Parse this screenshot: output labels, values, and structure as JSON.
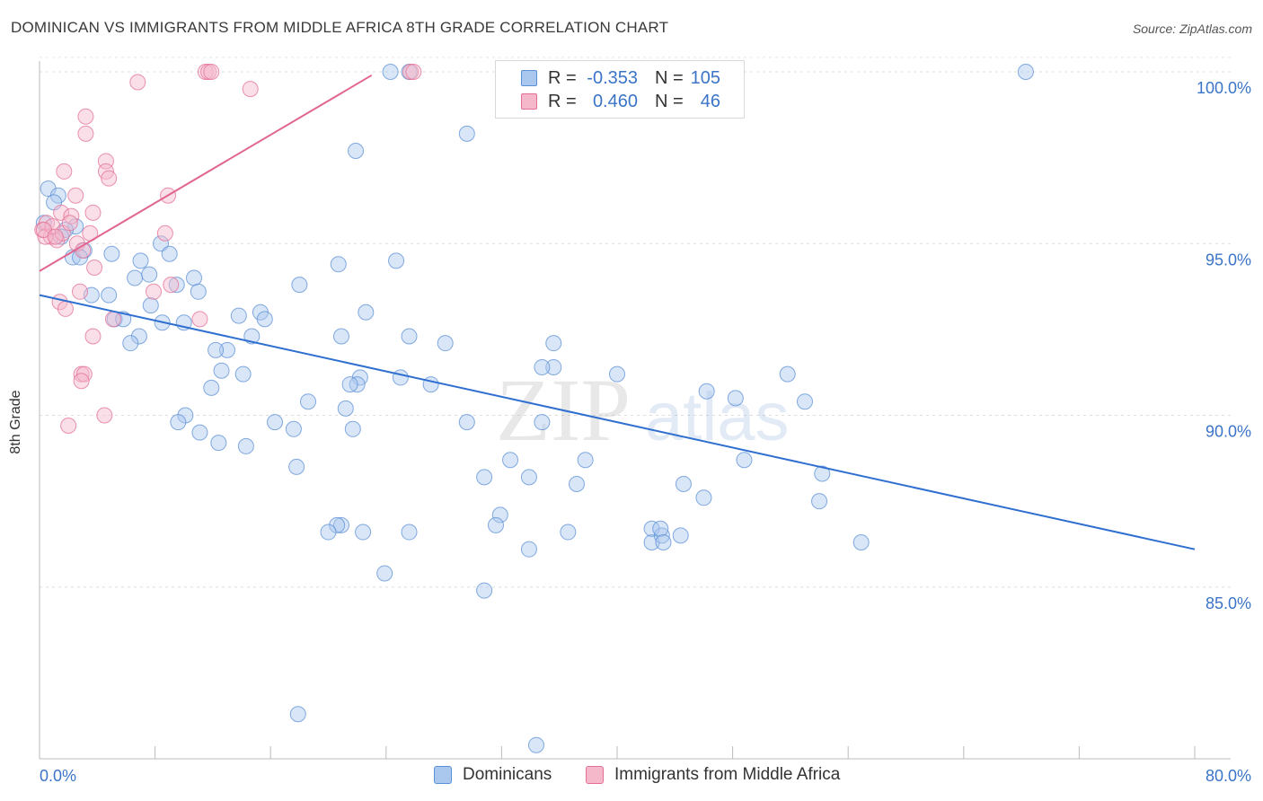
{
  "title": "DOMINICAN VS IMMIGRANTS FROM MIDDLE AFRICA 8TH GRADE CORRELATION CHART",
  "source": "Source: ZipAtlas.com",
  "watermark": {
    "zip": "ZIP",
    "atlas": "atlas"
  },
  "legend": {
    "r_label": "R =",
    "n_label": "N =",
    "series": [
      {
        "name": "Dominicans",
        "r": "-0.353",
        "n": "105",
        "color": "#5b8fd6",
        "fill": "#aac8ee"
      },
      {
        "name": "Immigrants from Middle Africa",
        "r": "0.460",
        "n": "46",
        "color": "#e36f94",
        "fill": "#f5b8cb"
      }
    ]
  },
  "chart_data": {
    "type": "scatter",
    "title": "DOMINICAN VS IMMIGRANTS FROM MIDDLE AFRICA 8TH GRADE CORRELATION CHART",
    "ylabel": "8th Grade",
    "xlabel": "",
    "xlim": [
      0,
      80
    ],
    "ylim": [
      80,
      100.5
    ],
    "x_tick_labels": [
      "0.0%",
      "80.0%"
    ],
    "y_ticks": [
      85,
      90,
      95,
      100
    ],
    "y_tick_labels": [
      "85.0%",
      "90.0%",
      "95.0%",
      "100.0%"
    ],
    "grid": true,
    "legend_position": "top-center",
    "series": [
      {
        "name": "Dominicans",
        "color": "#5b8fd6",
        "trend": {
          "x": [
            0,
            80
          ],
          "y": [
            93.5,
            86.1
          ]
        },
        "points": [
          [
            0.6,
            96.6
          ],
          [
            1.3,
            96.4
          ],
          [
            1,
            96.2
          ],
          [
            2.5,
            95.5
          ],
          [
            1.8,
            95.4
          ],
          [
            0.3,
            95.6
          ],
          [
            1.5,
            95.2
          ],
          [
            2.3,
            94.6
          ],
          [
            3.1,
            94.8
          ],
          [
            2.8,
            94.6
          ],
          [
            5,
            94.7
          ],
          [
            7,
            94.5
          ],
          [
            8.4,
            95
          ],
          [
            9,
            94.7
          ],
          [
            6.6,
            94
          ],
          [
            7.6,
            94.1
          ],
          [
            9.5,
            93.8
          ],
          [
            10.7,
            94
          ],
          [
            11,
            93.6
          ],
          [
            3.6,
            93.5
          ],
          [
            4.8,
            93.5
          ],
          [
            7.7,
            93.2
          ],
          [
            5.2,
            92.8
          ],
          [
            5.8,
            92.8
          ],
          [
            8.5,
            92.7
          ],
          [
            10,
            92.7
          ],
          [
            13.8,
            92.9
          ],
          [
            15.3,
            93
          ],
          [
            15.6,
            92.8
          ],
          [
            6.9,
            92.3
          ],
          [
            6.3,
            92.1
          ],
          [
            14.7,
            92.3
          ],
          [
            13,
            91.9
          ],
          [
            12.2,
            91.9
          ],
          [
            14.1,
            91.2
          ],
          [
            12.6,
            91.3
          ],
          [
            11.9,
            90.8
          ],
          [
            20.7,
            94.4
          ],
          [
            18,
            93.8
          ],
          [
            22.6,
            93
          ],
          [
            22.2,
            91.1
          ],
          [
            22,
            90.9
          ],
          [
            21.5,
            90.9
          ],
          [
            21.2,
            90.2
          ],
          [
            21.7,
            89.6
          ],
          [
            18.6,
            90.4
          ],
          [
            16.3,
            89.8
          ],
          [
            10.1,
            90
          ],
          [
            9.6,
            89.8
          ],
          [
            12.4,
            89.2
          ],
          [
            11.1,
            89.5
          ],
          [
            14.3,
            89.1
          ],
          [
            17.6,
            89.6
          ],
          [
            17.8,
            88.5
          ],
          [
            24.7,
            94.5
          ],
          [
            20.9,
            92.3
          ],
          [
            25,
            91.1
          ],
          [
            27.1,
            90.9
          ],
          [
            25.6,
            92.3
          ],
          [
            28.1,
            92.1
          ],
          [
            29.6,
            89.8
          ],
          [
            30.8,
            88.2
          ],
          [
            34.8,
            89.8
          ],
          [
            35.6,
            92.1
          ],
          [
            35.6,
            91.4
          ],
          [
            34.8,
            91.4
          ],
          [
            33.9,
            88.2
          ],
          [
            31.9,
            87.1
          ],
          [
            33.9,
            86.1
          ],
          [
            31.6,
            86.8
          ],
          [
            30.8,
            84.9
          ],
          [
            23.9,
            85.4
          ],
          [
            22.4,
            86.6
          ],
          [
            20.9,
            86.8
          ],
          [
            20.6,
            86.8
          ],
          [
            20,
            86.6
          ],
          [
            25.6,
            86.6
          ],
          [
            29.6,
            98.2
          ],
          [
            21.9,
            97.7
          ],
          [
            24.3,
            100
          ],
          [
            25.6,
            100
          ],
          [
            32.6,
            88.7
          ],
          [
            37.2,
            88
          ],
          [
            36.6,
            86.6
          ],
          [
            37.8,
            88.7
          ],
          [
            40,
            91.2
          ],
          [
            42.4,
            86.3
          ],
          [
            42.4,
            86.7
          ],
          [
            43.1,
            86.5
          ],
          [
            43,
            86.7
          ],
          [
            43.2,
            86.3
          ],
          [
            44.4,
            86.5
          ],
          [
            46.2,
            90.7
          ],
          [
            46,
            87.6
          ],
          [
            44.6,
            88
          ],
          [
            48.2,
            90.5
          ],
          [
            48.8,
            88.7
          ],
          [
            51.8,
            91.2
          ],
          [
            53,
            90.4
          ],
          [
            54,
            87.5
          ],
          [
            54.2,
            88.3
          ],
          [
            56.9,
            86.3
          ],
          [
            68.3,
            100
          ],
          [
            17.9,
            81.3
          ],
          [
            34.4,
            80.4
          ]
        ]
      },
      {
        "name": "Immigrants from Middle Africa",
        "color": "#e36f94",
        "trend": {
          "x": [
            0,
            23
          ],
          "y": [
            94.2,
            99.9
          ]
        },
        "points": [
          [
            0.2,
            95.4
          ],
          [
            0.5,
            95.6
          ],
          [
            0.8,
            95.2
          ],
          [
            1.2,
            95.1
          ],
          [
            0.4,
            95.2
          ],
          [
            0.9,
            95.5
          ],
          [
            1.5,
            95.9
          ],
          [
            2.2,
            95.8
          ],
          [
            1.6,
            95.3
          ],
          [
            2.6,
            95
          ],
          [
            2.1,
            95.6
          ],
          [
            3.7,
            95.9
          ],
          [
            3.5,
            95.3
          ],
          [
            3.8,
            94.3
          ],
          [
            1.7,
            97.1
          ],
          [
            2.5,
            96.4
          ],
          [
            3.2,
            98.7
          ],
          [
            3.2,
            98.2
          ],
          [
            4.6,
            97.4
          ],
          [
            4.6,
            97.1
          ],
          [
            4.8,
            96.9
          ],
          [
            8.9,
            96.4
          ],
          [
            8.7,
            95.3
          ],
          [
            2.8,
            93.6
          ],
          [
            1.4,
            93.3
          ],
          [
            1.8,
            93.1
          ],
          [
            5.1,
            92.8
          ],
          [
            3.7,
            92.3
          ],
          [
            7.9,
            93.6
          ],
          [
            9.1,
            93.8
          ],
          [
            11.1,
            92.8
          ],
          [
            2.9,
            91.2
          ],
          [
            3.1,
            91.2
          ],
          [
            2.9,
            91
          ],
          [
            4.5,
            90
          ],
          [
            2,
            89.7
          ],
          [
            6.8,
            99.7
          ],
          [
            11.5,
            100
          ],
          [
            11.7,
            100
          ],
          [
            11.9,
            100
          ],
          [
            14.6,
            99.5
          ],
          [
            25.7,
            100
          ],
          [
            25.9,
            100
          ],
          [
            0.3,
            95.4
          ],
          [
            1.1,
            95.2
          ],
          [
            3,
            94.8
          ]
        ]
      }
    ]
  }
}
